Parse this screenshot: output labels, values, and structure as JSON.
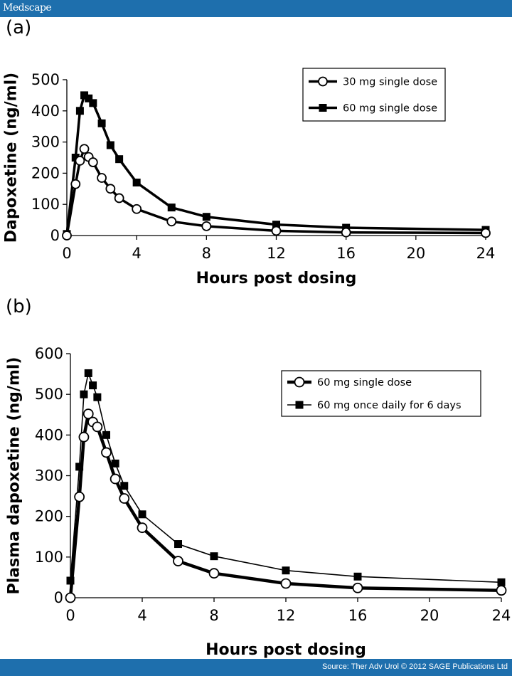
{
  "header": {
    "brand": "Medscape"
  },
  "footer": {
    "source": "Source: Ther Adv Urol © 2012 SAGE Publications Ltd"
  },
  "chart_data": [
    {
      "panel": "(a)",
      "type": "line",
      "xlabel": "Hours post dosing",
      "ylabel": "Dapoxetine (ng/ml)",
      "xlim": [
        0,
        24
      ],
      "ylim": [
        0,
        500
      ],
      "xticks": [
        0,
        4,
        8,
        12,
        16,
        20,
        24
      ],
      "yticks": [
        0,
        100,
        200,
        300,
        400,
        500
      ],
      "legend_position": "top-right",
      "series": [
        {
          "name": "30 mg single dose",
          "marker": "circle-open",
          "x": [
            0,
            0.5,
            0.75,
            1,
            1.25,
            1.5,
            2,
            2.5,
            3,
            4,
            6,
            8,
            12,
            16,
            24
          ],
          "y": [
            0,
            165,
            240,
            278,
            252,
            235,
            185,
            150,
            120,
            85,
            45,
            30,
            15,
            10,
            8
          ]
        },
        {
          "name": "60 mg single dose",
          "marker": "square-filled",
          "x": [
            0,
            0.5,
            0.75,
            1,
            1.25,
            1.5,
            2,
            2.5,
            3,
            4,
            6,
            8,
            12,
            16,
            24
          ],
          "y": [
            5,
            250,
            400,
            450,
            440,
            425,
            360,
            290,
            245,
            170,
            90,
            60,
            35,
            25,
            18
          ]
        }
      ]
    },
    {
      "panel": "(b)",
      "type": "line",
      "xlabel": "Hours post dosing",
      "ylabel": "Plasma dapoxetine (ng/ml)",
      "xlim": [
        0,
        24
      ],
      "ylim": [
        0,
        600
      ],
      "xticks": [
        0,
        4,
        8,
        12,
        16,
        20,
        24
      ],
      "yticks": [
        0,
        100,
        200,
        300,
        400,
        500,
        600
      ],
      "legend_position": "top-right",
      "series": [
        {
          "name": "60 mg single dose",
          "marker": "circle-open",
          "x": [
            0,
            0.5,
            0.75,
            1,
            1.25,
            1.5,
            2,
            2.5,
            3,
            4,
            6,
            8,
            12,
            16,
            24
          ],
          "y": [
            0,
            248,
            395,
            452,
            432,
            420,
            357,
            292,
            244,
            172,
            90,
            60,
            35,
            24,
            18
          ]
        },
        {
          "name": "60 mg once daily for 6 days",
          "marker": "square-filled",
          "x": [
            0,
            0.5,
            0.75,
            1,
            1.25,
            1.5,
            2,
            2.5,
            3,
            4,
            6,
            8,
            12,
            16,
            24
          ],
          "y": [
            42,
            322,
            500,
            552,
            522,
            493,
            400,
            330,
            275,
            205,
            132,
            102,
            67,
            52,
            38
          ]
        }
      ]
    }
  ]
}
